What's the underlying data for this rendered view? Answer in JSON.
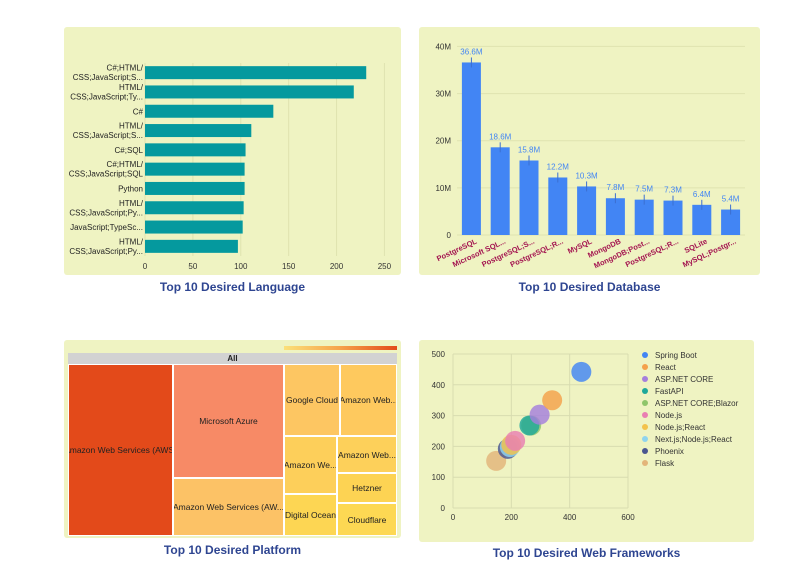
{
  "captions": {
    "language": "Top 10 Desired Language",
    "database": "Top 10 Desired Database",
    "platform": "Top 10 Desired Platform",
    "frameworks": "Top 10 Desired Web Frameworks"
  },
  "colors": {
    "panel_bg": "#eff3c2",
    "language_bar": "#05999e",
    "database_bar": "#4285f4",
    "database_label": "#4285f4",
    "database_tick": "#a3134f",
    "caption": "#2e4591"
  },
  "chart_data": [
    {
      "type": "bar",
      "orientation": "horizontal",
      "title": "Top 10 Desired Language",
      "categories": [
        [
          "C#;HTML/",
          "CSS;JavaScript;S..."
        ],
        [
          "HTML/",
          "CSS;JavaScript;Ty..."
        ],
        [
          "C#"
        ],
        [
          "HTML/",
          "CSS;JavaScript;S..."
        ],
        [
          "C#;SQL"
        ],
        [
          "C#;HTML/",
          "CSS;JavaScript;SQL"
        ],
        [
          "Python"
        ],
        [
          "HTML/",
          "CSS;JavaScript;Py..."
        ],
        [
          "JavaScript;TypeSc..."
        ],
        [
          "HTML/",
          "CSS;JavaScript;Py..."
        ]
      ],
      "values": [
        231,
        218,
        134,
        111,
        105,
        104,
        104,
        103,
        102,
        97
      ],
      "xlim": [
        0,
        260
      ],
      "xticks": [
        0,
        50,
        100,
        150,
        200,
        250
      ]
    },
    {
      "type": "bar",
      "title": "Top 10 Desired Database",
      "categories": [
        "PostgreSQL",
        "Microsoft SQL...",
        "PostgreSQL;S...",
        "PostgreSQL;R...",
        "MySQL",
        "MongoDB",
        "MongoDB;Post...",
        "PostgreSQL;R...",
        "SQLite",
        "MySQL;Postgr..."
      ],
      "values": [
        36.6,
        18.6,
        15.8,
        12.2,
        10.3,
        7.8,
        7.5,
        7.3,
        6.4,
        5.4
      ],
      "data_labels": [
        "36.6M",
        "18.6M",
        "15.8M",
        "12.2M",
        "10.3M",
        "7.8M",
        "7.5M",
        "7.3M",
        "6.4M",
        "5.4M"
      ],
      "ylim": [
        0,
        42
      ],
      "yticks": [
        0,
        10,
        20,
        30,
        40
      ],
      "ytick_labels": [
        "0",
        "10M",
        "20M",
        "30M",
        "40M"
      ],
      "error_bars": true
    },
    {
      "type": "treemap",
      "title": "Top 10 Desired Platform",
      "root": "All",
      "tiles": [
        {
          "label": "Amazon Web Services (AWS)",
          "color": "#e34a1a"
        },
        {
          "label": "Microsoft Azure",
          "color": "#f78a66"
        },
        {
          "label": "Amazon Web Services (AW...",
          "color": "#fcc266"
        },
        {
          "label": "Google Cloud",
          "color": "#fdc662"
        },
        {
          "label": "Amazon Web...",
          "color": "#fec95e"
        },
        {
          "label": "Amazon We...",
          "color": "#fdcf5a"
        },
        {
          "label": "Amazon Web...",
          "color": "#fdd05a"
        },
        {
          "label": "Hetzner",
          "color": "#fdd353"
        },
        {
          "label": "Digital Ocean",
          "color": "#fdd653"
        },
        {
          "label": "Cloudflare",
          "color": "#fdd853"
        }
      ]
    },
    {
      "type": "scatter",
      "title": "Top 10 Desired Web Frameworks",
      "series": [
        {
          "name": "Spring Boot",
          "color": "#4285f4",
          "x": 440,
          "y": 442
        },
        {
          "name": "React",
          "color": "#f4a14a",
          "x": 340,
          "y": 350
        },
        {
          "name": "ASP.NET CORE",
          "color": "#a57fdd",
          "x": 297,
          "y": 303
        },
        {
          "name": "FastAPI",
          "color": "#1fa89a",
          "x": 262,
          "y": 268
        },
        {
          "name": "ASP.NET CORE;Blazor",
          "color": "#8fc66a",
          "x": 268,
          "y": 268
        },
        {
          "name": "Node.js",
          "color": "#e97fb2",
          "x": 213,
          "y": 218
        },
        {
          "name": "Node.js;React",
          "color": "#f3c24a",
          "x": 200,
          "y": 205
        },
        {
          "name": "Next.js;Node.js;React",
          "color": "#8fd4ee",
          "x": 195,
          "y": 198
        },
        {
          "name": "Phoenix",
          "color": "#4a5690",
          "x": 188,
          "y": 192
        },
        {
          "name": "Flask",
          "color": "#e3b57a",
          "x": 148,
          "y": 153
        }
      ],
      "xlim": [
        0,
        600
      ],
      "ylim": [
        0,
        500
      ],
      "xticks": [
        0,
        200,
        400,
        600
      ],
      "yticks": [
        0,
        100,
        200,
        300,
        400,
        500
      ],
      "grid": true,
      "legend": "right"
    }
  ]
}
